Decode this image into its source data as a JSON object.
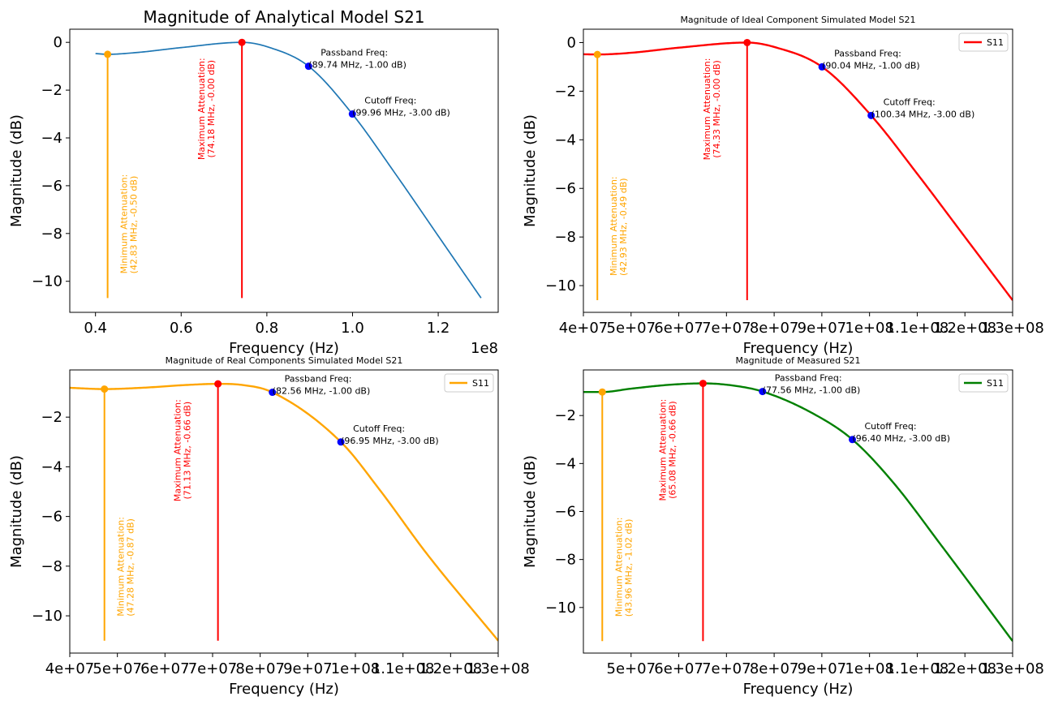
{
  "chart_data": [
    {
      "type": "line",
      "title": "Magnitude of Analytical Model S21",
      "xlabel": "Frequency (Hz)",
      "ylabel": "Magnitude (dB)",
      "x_offset_label": "1e8",
      "xlim": [
        34000000,
        134000000
      ],
      "ylim": [
        -11.3,
        0.55
      ],
      "xticks": [
        40000000,
        60000000,
        80000000,
        100000000,
        120000000
      ],
      "xtick_labels": [
        "0.4",
        "0.6",
        "0.8",
        "1.0",
        "1.2"
      ],
      "yticks": [
        0,
        -2,
        -4,
        -6,
        -8,
        -10
      ],
      "ytick_labels": [
        "0",
        "−2",
        "−4",
        "−6",
        "−8",
        "−10"
      ],
      "legend": null,
      "series": [
        {
          "color": "#1f77b4",
          "x": [
            40000000,
            42830000,
            50000000,
            60000000,
            74180000,
            80000000,
            89740000,
            99960000,
            110000000,
            120000000,
            130000000
          ],
          "y": [
            -0.47,
            -0.5,
            -0.42,
            -0.22,
            0.0,
            -0.18,
            -1.0,
            -3.0,
            -5.5,
            -8.1,
            -10.7
          ]
        }
      ],
      "markers": {
        "min": {
          "x": 42830000,
          "y": -0.5,
          "color": "#ffa500",
          "label": [
            "Minimum Attenuation:",
            "(42.83 MHz, -0.50 dB)"
          ]
        },
        "max": {
          "x": 74180000,
          "y": 0.0,
          "color": "#ff0000",
          "label": [
            "Maximum Attenuation:",
            "(74.18 MHz, -0.00 dB)"
          ]
        },
        "passband": {
          "x": 89740000,
          "y": -1.0,
          "color": "#0000ff",
          "label": [
            "Passband Freq:",
            "(89.74 MHz, -1.00 dB)"
          ]
        },
        "cutoff": {
          "x": 99960000,
          "y": -3.0,
          "color": "#0000ff",
          "label": [
            "Cutoff Freq:",
            "(99.96 MHz, -3.00 dB)"
          ]
        }
      },
      "vline_bottom": -10.7
    },
    {
      "type": "line",
      "title": "Magnitude of Ideal Component Simulated Model S21",
      "xlabel": "Frequency (Hz)",
      "ylabel": "Magnitude (dB)",
      "xlim": [
        40000000,
        130000000
      ],
      "ylim": [
        -11.1,
        0.55
      ],
      "xticks": [
        40000000,
        50000000,
        60000000,
        70000000,
        80000000,
        90000000,
        100000000,
        110000000,
        120000000,
        130000000
      ],
      "xtick_labels": [
        "4e+07",
        "5e+07",
        "6e+07",
        "7e+07",
        "8e+07",
        "9e+07",
        "1e+08",
        "1.1e+08",
        "1.2e+08",
        "1.3e+08"
      ],
      "yticks": [
        0,
        -2,
        -4,
        -6,
        -8,
        -10
      ],
      "ytick_labels": [
        "0",
        "−2",
        "−4",
        "−6",
        "−8",
        "−10"
      ],
      "legend": {
        "label": "S11",
        "position": "upper right"
      },
      "series": [
        {
          "name": "S11",
          "color": "#ff0000",
          "x": [
            40000000,
            42930000,
            50000000,
            60000000,
            74330000,
            80000000,
            90040000,
            100340000,
            110000000,
            120000000,
            130000000
          ],
          "y": [
            -0.48,
            -0.49,
            -0.42,
            -0.21,
            0.0,
            -0.18,
            -1.0,
            -3.0,
            -5.4,
            -8.0,
            -10.6
          ]
        }
      ],
      "markers": {
        "min": {
          "x": 42930000,
          "y": -0.49,
          "color": "#ffa500",
          "label": [
            "Minimum Attenuation:",
            "(42.93 MHz, -0.49 dB)"
          ]
        },
        "max": {
          "x": 74330000,
          "y": 0.0,
          "color": "#ff0000",
          "label": [
            "Maximum Attenuation:",
            "(74.33 MHz, -0.00 dB)"
          ]
        },
        "passband": {
          "x": 90040000,
          "y": -1.0,
          "color": "#0000ff",
          "label": [
            "Passband Freq:",
            "(90.04 MHz, -1.00 dB)"
          ]
        },
        "cutoff": {
          "x": 100340000,
          "y": -3.0,
          "color": "#0000ff",
          "label": [
            "Cutoff Freq:",
            "(100.34 MHz, -3.00 dB)"
          ]
        }
      },
      "vline_bottom": -10.6
    },
    {
      "type": "line",
      "title": "Magnitude of Real Components Simulated Model S21",
      "xlabel": "Frequency (Hz)",
      "ylabel": "Magnitude (dB)",
      "xlim": [
        40000000,
        130000000
      ],
      "ylim": [
        -11.5,
        -0.1
      ],
      "xticks": [
        40000000,
        50000000,
        60000000,
        70000000,
        80000000,
        90000000,
        100000000,
        110000000,
        120000000,
        130000000
      ],
      "xtick_labels": [
        "4e+07",
        "5e+07",
        "6e+07",
        "7e+07",
        "8e+07",
        "9e+07",
        "1e+08",
        "1.1e+08",
        "1.2e+08",
        "1.3e+08"
      ],
      "yticks": [
        -2,
        -4,
        -6,
        -8,
        -10
      ],
      "ytick_labels": [
        "−2",
        "−4",
        "−6",
        "−8",
        "−10"
      ],
      "legend": {
        "label": "S11",
        "position": "upper right"
      },
      "series": [
        {
          "name": "S11",
          "color": "#ffa500",
          "x": [
            40000000,
            47280000,
            55000000,
            65000000,
            71130000,
            76000000,
            82560000,
            96950000,
            105000000,
            115000000,
            130000000
          ],
          "y": [
            -0.82,
            -0.87,
            -0.82,
            -0.7,
            -0.66,
            -0.7,
            -1.0,
            -3.0,
            -4.9,
            -7.5,
            -11.0
          ]
        }
      ],
      "markers": {
        "min": {
          "x": 47280000,
          "y": -0.87,
          "color": "#ffa500",
          "label": [
            "Minimum Attenuation:",
            "(47.28 MHz, -0.87 dB)"
          ]
        },
        "max": {
          "x": 71130000,
          "y": -0.66,
          "color": "#ff0000",
          "label": [
            "Maximum Attenuation:",
            "(71.13 MHz, -0.66 dB)"
          ]
        },
        "passband": {
          "x": 82560000,
          "y": -1.0,
          "color": "#0000ff",
          "label": [
            "Passband Freq:",
            "(82.56 MHz, -1.00 dB)"
          ]
        },
        "cutoff": {
          "x": 96950000,
          "y": -3.0,
          "color": "#0000ff",
          "label": [
            "Cutoff Freq:",
            "(96.95 MHz, -3.00 dB)"
          ]
        }
      },
      "vline_bottom": -11.0
    },
    {
      "type": "line",
      "title": "Magnitude of Measured S21",
      "xlabel": "Frequency (Hz)",
      "ylabel": "Magnitude (dB)",
      "xlim": [
        40000000,
        130000000
      ],
      "ylim": [
        -11.9,
        -0.1
      ],
      "xticks": [
        50000000,
        60000000,
        70000000,
        80000000,
        90000000,
        100000000,
        110000000,
        120000000,
        130000000
      ],
      "xtick_labels": [
        "5e+07",
        "6e+07",
        "7e+07",
        "8e+07",
        "9e+07",
        "1e+08",
        "1.1e+08",
        "1.2e+08",
        "1.3e+08"
      ],
      "yticks": [
        -2,
        -4,
        -6,
        -8,
        -10
      ],
      "ytick_labels": [
        "−2",
        "−4",
        "−6",
        "−8",
        "−10"
      ],
      "legend": {
        "label": "S11",
        "position": "upper right"
      },
      "series": [
        {
          "name": "S11",
          "color": "#008000",
          "x": [
            40000000,
            43960000,
            50000000,
            58000000,
            65080000,
            71000000,
            77560000,
            88000000,
            96400000,
            105000000,
            115000000,
            130000000
          ],
          "y": [
            -1.02,
            -1.02,
            -0.88,
            -0.72,
            -0.66,
            -0.74,
            -1.0,
            -1.9,
            -3.0,
            -4.8,
            -7.4,
            -11.4
          ]
        }
      ],
      "markers": {
        "min": {
          "x": 43960000,
          "y": -1.02,
          "color": "#ffa500",
          "label": [
            "Minimum Attenuation:",
            "(43.96 MHz, -1.02 dB)"
          ]
        },
        "max": {
          "x": 65080000,
          "y": -0.66,
          "color": "#ff0000",
          "label": [
            "Maximum Attenuation:",
            "(65.08 MHz, -0.66 dB)"
          ]
        },
        "passband": {
          "x": 77560000,
          "y": -1.0,
          "color": "#0000ff",
          "label": [
            "Passband Freq:",
            "(77.56 MHz, -1.00 dB)"
          ]
        },
        "cutoff": {
          "x": 96400000,
          "y": -3.0,
          "color": "#0000ff",
          "label": [
            "Cutoff Freq:",
            "(96.40 MHz, -3.00 dB)"
          ]
        }
      },
      "vline_bottom": -11.4
    }
  ]
}
